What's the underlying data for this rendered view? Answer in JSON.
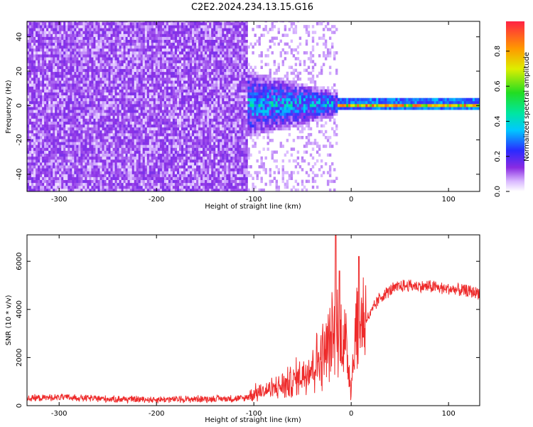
{
  "title": "C2E2.2024.234.13.15.G16",
  "colors": {
    "snr_line": "#ee2b2b",
    "frame": "#000000"
  },
  "chart_data": [
    {
      "type": "heatmap",
      "xlabel": "Height of straight line (km)",
      "ylabel": "Frequency (Hz)",
      "xlim": [
        -333,
        132
      ],
      "ylim": [
        -50,
        49
      ],
      "x_ticks": [
        -300,
        -200,
        -100,
        0,
        100
      ],
      "y_ticks": [
        -40,
        -20,
        0,
        20,
        40
      ],
      "colormap": "rainbow (white → purple → blue → cyan → green → yellow → red)",
      "colorbar": {
        "label": "Normalized spectral amplitude",
        "range": [
          0,
          0.97
        ],
        "ticks": [
          0.0,
          0.2,
          0.4,
          0.6,
          0.8
        ]
      },
      "regions": [
        {
          "x_range": [
            -333,
            -108
          ],
          "freq_spread_hz": [
            -50,
            49
          ],
          "amplitude": "low, ~0.1 (purple noise)"
        },
        {
          "x_range": [
            -108,
            -15
          ],
          "freq_spread_hz": [
            -14,
            14
          ],
          "amplitude": "0.2 – 0.6 (blue–green)"
        },
        {
          "x_range": [
            -15,
            132
          ],
          "freq_spread_hz": [
            -2,
            2
          ],
          "amplitude": "0.5 – 0.97 (green–red line near 0 Hz)"
        }
      ]
    },
    {
      "type": "line",
      "xlabel": "Height of straight line (km)",
      "ylabel": "SNR (10 * v/v)",
      "xlim": [
        -333,
        132
      ],
      "ylim": [
        0,
        7100
      ],
      "x_ticks": [
        -300,
        -200,
        -100,
        0,
        100
      ],
      "y_ticks": [
        0,
        2000,
        4000,
        6000
      ],
      "series": [
        {
          "color": "#ee2b2b",
          "x": [
            -333,
            -300,
            -250,
            -200,
            -150,
            -110,
            -100,
            -90,
            -80,
            -70,
            -60,
            -50,
            -40,
            -30,
            -20,
            -15,
            -10,
            -5,
            0,
            5,
            10,
            15,
            20,
            25,
            30,
            40,
            50,
            60,
            70,
            80,
            90,
            100,
            110,
            120,
            132
          ],
          "y": [
            300,
            350,
            280,
            250,
            280,
            300,
            500,
            600,
            700,
            850,
            1000,
            1300,
            1700,
            2100,
            2700,
            2900,
            3000,
            2400,
            800,
            3200,
            3500,
            3600,
            3800,
            4200,
            4500,
            4800,
            4950,
            5000,
            4950,
            4950,
            4900,
            4850,
            4800,
            4750,
            4700
          ]
        }
      ],
      "spikes": [
        {
          "x": -16,
          "y": 7100
        },
        {
          "x": -12,
          "y": 5600
        },
        {
          "x": 8,
          "y": 6200
        }
      ]
    }
  ]
}
